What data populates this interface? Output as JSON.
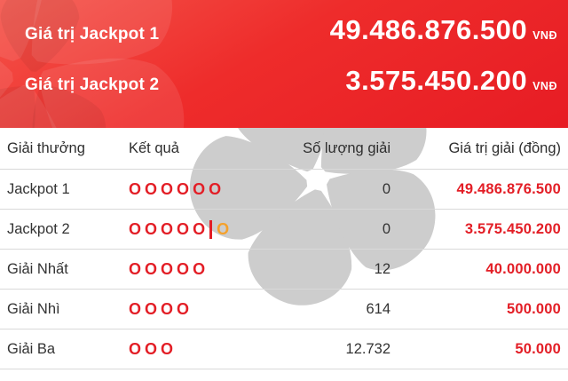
{
  "header": {
    "jackpots": [
      {
        "label": "Giá trị Jackpot 1",
        "value": "49.486.876.500",
        "currency": "VNĐ"
      },
      {
        "label": "Giá trị Jackpot 2",
        "value": "3.575.450.200",
        "currency": "VNĐ"
      }
    ]
  },
  "table": {
    "columns": [
      "Giải thưởng",
      "Kết quả",
      "Số lượng giải",
      "Giá trị giải (đồng)"
    ],
    "result_glyph": "O",
    "rows": [
      {
        "prize": "Jackpot 1",
        "result_count": 6,
        "has_bonus": false,
        "quantity": "0",
        "value": "49.486.876.500"
      },
      {
        "prize": "Jackpot 2",
        "result_count": 5,
        "has_bonus": true,
        "quantity": "0",
        "value": "3.575.450.200"
      },
      {
        "prize": "Giải Nhất",
        "result_count": 5,
        "has_bonus": false,
        "quantity": "12",
        "value": "40.000.000"
      },
      {
        "prize": "Giải Nhì",
        "result_count": 4,
        "has_bonus": false,
        "quantity": "614",
        "value": "500.000"
      },
      {
        "prize": "Giải Ba",
        "result_count": 3,
        "has_bonus": false,
        "quantity": "12.732",
        "value": "50.000"
      }
    ]
  },
  "icons": {
    "watermark": "vietlott-flower-logo"
  },
  "colors": {
    "banner_red_top": "#f4544a",
    "banner_red_bottom": "#e71c24",
    "accent_red": "#e31e26",
    "bonus_orange": "#f5a12b",
    "watermark_gray": "#cdcdcd",
    "text_dark": "#333333",
    "divider_gray": "#d9d9d9"
  }
}
